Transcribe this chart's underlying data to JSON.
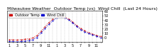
{
  "title": "Milwaukee Weather  Outdoor Temp (vs)  Wind Chill  (Last 24 Hours)",
  "bg_color": "#ffffff",
  "plot_bg": "#ffffff",
  "grid_color": "#aaaaaa",
  "x_ticks": [
    0,
    1,
    2,
    3,
    4,
    5,
    6,
    7,
    8,
    9,
    10,
    11,
    12,
    13,
    14,
    15,
    16,
    17,
    18,
    19,
    20,
    21,
    22,
    23
  ],
  "x_labels": [
    "1",
    "",
    "3",
    "",
    "5",
    "",
    "7",
    "",
    "9",
    "",
    "11",
    "",
    "1",
    "",
    "3",
    "",
    "5",
    "",
    "7",
    "",
    "9",
    "",
    "11",
    ""
  ],
  "ylim": [
    -10,
    60
  ],
  "y_ticks": [
    0,
    10,
    20,
    30,
    40,
    50,
    60
  ],
  "y_labels": [
    "0",
    "10",
    "20",
    "30",
    "40",
    "50",
    "60"
  ],
  "temp_color": "#cc0000",
  "chill_color": "#0000cc",
  "temp_x": [
    0,
    1,
    2,
    3,
    4,
    5,
    6,
    7,
    8,
    9,
    10,
    11,
    12,
    13,
    14,
    15,
    16,
    17,
    18,
    19,
    20,
    21,
    22,
    23
  ],
  "temp_y": [
    -5,
    -5,
    -6,
    -5,
    -4,
    -3,
    -1,
    4,
    14,
    24,
    34,
    42,
    47,
    48,
    46,
    42,
    35,
    27,
    20,
    15,
    11,
    8,
    5,
    2
  ],
  "chill_x": [
    0,
    1,
    2,
    3,
    4,
    5,
    6,
    7,
    8,
    9,
    10,
    11,
    12,
    13,
    14,
    15,
    16,
    17,
    18,
    19,
    20,
    21,
    22,
    23
  ],
  "chill_y": [
    -9,
    -9,
    -10,
    -9,
    -8,
    -7,
    -5,
    0,
    10,
    20,
    30,
    38,
    44,
    46,
    44,
    40,
    33,
    25,
    18,
    13,
    9,
    6,
    3,
    0
  ],
  "legend_temp": "Outdoor Temp",
  "legend_chill": "Wind Chill",
  "title_fontsize": 4.5,
  "tick_fontsize": 3.5,
  "legend_fontsize": 3.5
}
